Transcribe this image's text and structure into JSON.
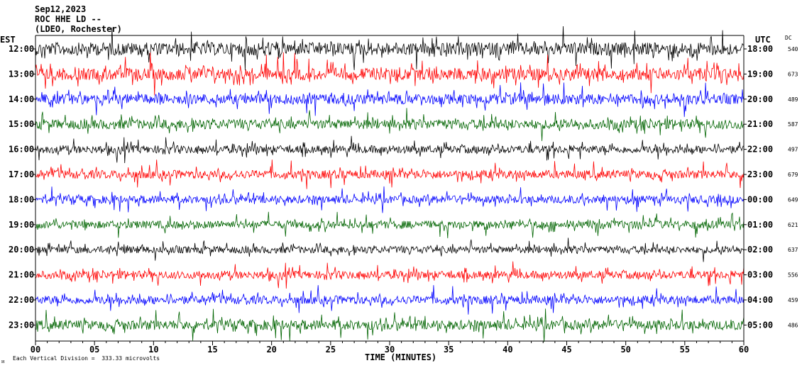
{
  "header": {
    "date": "Sep12,2023",
    "station": "ROC HHE LD --",
    "network": "(LDEO, Rochester)",
    "left_zone": "EST",
    "right_zone": "UTC",
    "dc_label": "DC"
  },
  "footer": {
    "scale_note": "Each Vertical Division =  333.33 microvolts",
    "xlabel": "TIME (MINUTES)"
  },
  "colors": {
    "black": "#000000",
    "red": "#ff0000",
    "blue": "#0000ff",
    "green": "#006400"
  },
  "chart_data": {
    "type": "line",
    "title": "Sep12,2023",
    "xlabel": "TIME (MINUTES)",
    "xlim": [
      0,
      60
    ],
    "x_ticks": [
      "00",
      "05",
      "10",
      "15",
      "20",
      "25",
      "30",
      "35",
      "40",
      "45",
      "50",
      "55",
      "60"
    ],
    "grid": false,
    "traces": [
      {
        "est": "12:00",
        "utc": "18:00",
        "dc": "540",
        "color": "black",
        "amplitude": 1.0
      },
      {
        "est": "13:00",
        "utc": "19:00",
        "dc": "673",
        "color": "red",
        "amplitude": 0.95
      },
      {
        "est": "14:00",
        "utc": "20:00",
        "dc": "489",
        "color": "blue",
        "amplitude": 0.8
      },
      {
        "est": "15:00",
        "utc": "21:00",
        "dc": "587",
        "color": "green",
        "amplitude": 0.75
      },
      {
        "est": "16:00",
        "utc": "22:00",
        "dc": "497",
        "color": "black",
        "amplitude": 0.6
      },
      {
        "est": "17:00",
        "utc": "23:00",
        "dc": "679",
        "color": "red",
        "amplitude": 0.65
      },
      {
        "est": "18:00",
        "utc": "00:00",
        "dc": "649",
        "color": "blue",
        "amplitude": 0.6
      },
      {
        "est": "19:00",
        "utc": "01:00",
        "dc": "621",
        "color": "green",
        "amplitude": 0.6
      },
      {
        "est": "20:00",
        "utc": "02:00",
        "dc": "637",
        "color": "black",
        "amplitude": 0.55
      },
      {
        "est": "21:00",
        "utc": "03:00",
        "dc": "556",
        "color": "red",
        "amplitude": 0.6
      },
      {
        "est": "22:00",
        "utc": "04:00",
        "dc": "459",
        "color": "blue",
        "amplitude": 0.65
      },
      {
        "est": "23:00",
        "utc": "05:00",
        "dc": "486",
        "color": "green",
        "amplitude": 0.75
      }
    ]
  }
}
